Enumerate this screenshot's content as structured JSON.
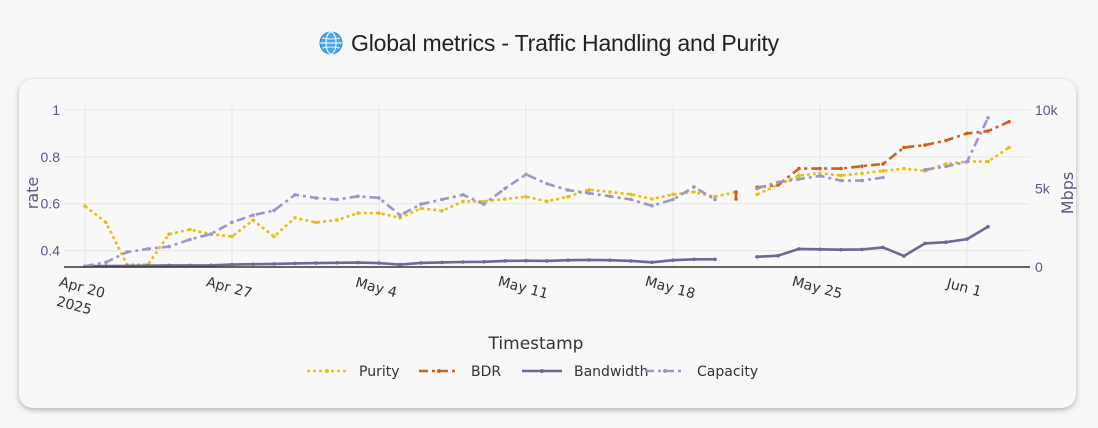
{
  "header": {
    "title": "Global metrics - Traffic Handling and Purity",
    "icon": "globe-icon"
  },
  "chart_data": {
    "type": "line",
    "xlabel": "Timestamp",
    "ylabel_left": "rate",
    "ylabel_right": "Mbps",
    "x_range": [
      "2025-04-19",
      "2025-06-04"
    ],
    "ylim_left": [
      0.33,
      1.0
    ],
    "ylim_right": [
      0,
      10000
    ],
    "left_ticks": [
      0.4,
      0.6,
      0.8,
      1
    ],
    "left_tick_labels": [
      "0.4",
      "0.6",
      "0.8",
      "1"
    ],
    "right_ticks": [
      0,
      5000,
      10000
    ],
    "right_tick_labels": [
      "0",
      "5k",
      "10k"
    ],
    "x_ticks": [
      {
        "date": "2025-04-20",
        "label": "Apr 20",
        "sub": "2025"
      },
      {
        "date": "2025-04-27",
        "label": "Apr 27",
        "sub": ""
      },
      {
        "date": "2025-05-04",
        "label": "May 4",
        "sub": ""
      },
      {
        "date": "2025-05-11",
        "label": "May 11",
        "sub": ""
      },
      {
        "date": "2025-05-18",
        "label": "May 18",
        "sub": ""
      },
      {
        "date": "2025-05-25",
        "label": "May 25",
        "sub": ""
      },
      {
        "date": "2025-06-01",
        "label": "Jun 1",
        "sub": ""
      }
    ],
    "grid": true,
    "legend_position": "bottom",
    "series": [
      {
        "name": "Purity",
        "axis": "left",
        "color": "#e6c115",
        "dash": "dot",
        "segments": [
          [
            [
              "2025-04-20",
              0.59
            ],
            [
              "2025-04-21",
              0.52
            ],
            [
              "2025-04-22",
              0.34
            ],
            [
              "2025-04-23",
              0.34
            ],
            [
              "2025-04-24",
              0.47
            ],
            [
              "2025-04-25",
              0.49
            ],
            [
              "2025-04-26",
              0.47
            ],
            [
              "2025-04-27",
              0.46
            ],
            [
              "2025-04-28",
              0.53
            ],
            [
              "2025-04-29",
              0.46
            ],
            [
              "2025-04-30",
              0.54
            ],
            [
              "2025-05-01",
              0.52
            ],
            [
              "2025-05-02",
              0.53
            ],
            [
              "2025-05-03",
              0.56
            ],
            [
              "2025-05-04",
              0.56
            ],
            [
              "2025-05-05",
              0.54
            ],
            [
              "2025-05-06",
              0.58
            ],
            [
              "2025-05-07",
              0.57
            ],
            [
              "2025-05-08",
              0.61
            ],
            [
              "2025-05-09",
              0.61
            ],
            [
              "2025-05-10",
              0.62
            ],
            [
              "2025-05-11",
              0.63
            ],
            [
              "2025-05-12",
              0.61
            ],
            [
              "2025-05-13",
              0.63
            ],
            [
              "2025-05-14",
              0.66
            ],
            [
              "2025-05-15",
              0.65
            ],
            [
              "2025-05-16",
              0.64
            ],
            [
              "2025-05-17",
              0.62
            ],
            [
              "2025-05-18",
              0.64
            ],
            [
              "2025-05-19",
              0.65
            ],
            [
              "2025-05-20",
              0.63
            ],
            [
              "2025-05-21",
              0.65
            ]
          ],
          [
            [
              "2025-05-22",
              0.64
            ],
            [
              "2025-05-23",
              0.68
            ],
            [
              "2025-05-24",
              0.72
            ],
            [
              "2025-05-25",
              0.73
            ],
            [
              "2025-05-26",
              0.72
            ],
            [
              "2025-05-27",
              0.73
            ],
            [
              "2025-05-28",
              0.74
            ],
            [
              "2025-05-29",
              0.75
            ],
            [
              "2025-05-30",
              0.74
            ],
            [
              "2025-05-31",
              0.77
            ],
            [
              "2025-06-01",
              0.78
            ],
            [
              "2025-06-02",
              0.78
            ],
            [
              "2025-06-03",
              0.84
            ]
          ]
        ]
      },
      {
        "name": "BDR",
        "axis": "left",
        "color": "#d45e1a",
        "dash": "dashdot",
        "segments": [
          [
            [
              "2025-05-21",
              0.62
            ],
            [
              "2025-05-21",
              0.65
            ]
          ],
          [
            [
              "2025-05-22",
              0.67
            ],
            [
              "2025-05-23",
              0.68
            ],
            [
              "2025-05-24",
              0.75
            ],
            [
              "2025-05-25",
              0.75
            ],
            [
              "2025-05-26",
              0.75
            ],
            [
              "2025-05-27",
              0.76
            ],
            [
              "2025-05-28",
              0.77
            ],
            [
              "2025-05-29",
              0.84
            ],
            [
              "2025-05-30",
              0.85
            ],
            [
              "2025-05-31",
              0.87
            ],
            [
              "2025-06-01",
              0.9
            ],
            [
              "2025-06-02",
              0.91
            ],
            [
              "2025-06-03",
              0.95
            ]
          ]
        ]
      },
      {
        "name": "Bandwidth",
        "axis": "right",
        "color": "#6f6896",
        "dash": "solid",
        "segments": [
          [
            [
              "2025-04-20",
              50
            ],
            [
              "2025-04-21",
              60
            ],
            [
              "2025-04-22",
              70
            ],
            [
              "2025-04-23",
              80
            ],
            [
              "2025-04-24",
              100
            ],
            [
              "2025-04-25",
              100
            ],
            [
              "2025-04-26",
              110
            ],
            [
              "2025-04-27",
              150
            ],
            [
              "2025-04-28",
              180
            ],
            [
              "2025-04-29",
              200
            ],
            [
              "2025-04-30",
              230
            ],
            [
              "2025-05-01",
              250
            ],
            [
              "2025-05-02",
              270
            ],
            [
              "2025-05-03",
              280
            ],
            [
              "2025-05-04",
              250
            ],
            [
              "2025-05-05",
              150
            ],
            [
              "2025-05-06",
              260
            ],
            [
              "2025-05-07",
              290
            ],
            [
              "2025-05-08",
              320
            ],
            [
              "2025-05-09",
              330
            ],
            [
              "2025-05-10",
              390
            ],
            [
              "2025-05-11",
              400
            ],
            [
              "2025-05-12",
              390
            ],
            [
              "2025-05-13",
              430
            ],
            [
              "2025-05-14",
              450
            ],
            [
              "2025-05-15",
              430
            ],
            [
              "2025-05-16",
              390
            ],
            [
              "2025-05-17",
              300
            ],
            [
              "2025-05-18",
              430
            ],
            [
              "2025-05-19",
              490
            ],
            [
              "2025-05-20",
              490
            ]
          ],
          [
            [
              "2025-05-22",
              650
            ],
            [
              "2025-05-23",
              720
            ],
            [
              "2025-05-24",
              1150
            ],
            [
              "2025-05-25",
              1130
            ],
            [
              "2025-05-26",
              1100
            ],
            [
              "2025-05-27",
              1120
            ],
            [
              "2025-05-28",
              1250
            ],
            [
              "2025-05-29",
              700
            ],
            [
              "2025-05-30",
              1500
            ],
            [
              "2025-05-31",
              1580
            ],
            [
              "2025-06-01",
              1780
            ],
            [
              "2025-06-02",
              2570
            ]
          ]
        ]
      },
      {
        "name": "Capacity",
        "axis": "right",
        "color": "#9e96c4",
        "dash": "dashdot",
        "segments": [
          [
            [
              "2025-04-20",
              50
            ],
            [
              "2025-04-21",
              300
            ],
            [
              "2025-04-22",
              950
            ],
            [
              "2025-04-23",
              1150
            ],
            [
              "2025-04-24",
              1300
            ],
            [
              "2025-04-25",
              1750
            ],
            [
              "2025-04-26",
              2100
            ],
            [
              "2025-04-27",
              2850
            ],
            [
              "2025-04-28",
              3300
            ],
            [
              "2025-04-29",
              3600
            ],
            [
              "2025-04-30",
              4600
            ],
            [
              "2025-05-01",
              4400
            ],
            [
              "2025-05-02",
              4300
            ],
            [
              "2025-05-03",
              4500
            ],
            [
              "2025-05-04",
              4400
            ],
            [
              "2025-05-05",
              3300
            ],
            [
              "2025-05-06",
              4000
            ],
            [
              "2025-05-07",
              4300
            ],
            [
              "2025-05-08",
              4600
            ],
            [
              "2025-05-09",
              4000
            ],
            [
              "2025-05-10",
              5000
            ],
            [
              "2025-05-11",
              5900
            ],
            [
              "2025-05-12",
              5300
            ],
            [
              "2025-05-13",
              4900
            ],
            [
              "2025-05-14",
              4700
            ],
            [
              "2025-05-15",
              4500
            ],
            [
              "2025-05-16",
              4300
            ],
            [
              "2025-05-17",
              3900
            ],
            [
              "2025-05-18",
              4300
            ],
            [
              "2025-05-19",
              5100
            ],
            [
              "2025-05-20",
              4300
            ]
          ],
          [
            [
              "2025-05-22",
              5000
            ],
            [
              "2025-05-23",
              5400
            ],
            [
              "2025-05-24",
              5600
            ],
            [
              "2025-05-25",
              5800
            ],
            [
              "2025-05-26",
              5500
            ],
            [
              "2025-05-27",
              5500
            ],
            [
              "2025-05-28",
              5700
            ]
          ],
          [
            [
              "2025-05-30",
              6200
            ],
            [
              "2025-05-31",
              6400
            ],
            [
              "2025-06-01",
              6700
            ],
            [
              "2025-06-02",
              9500
            ]
          ]
        ]
      }
    ]
  }
}
